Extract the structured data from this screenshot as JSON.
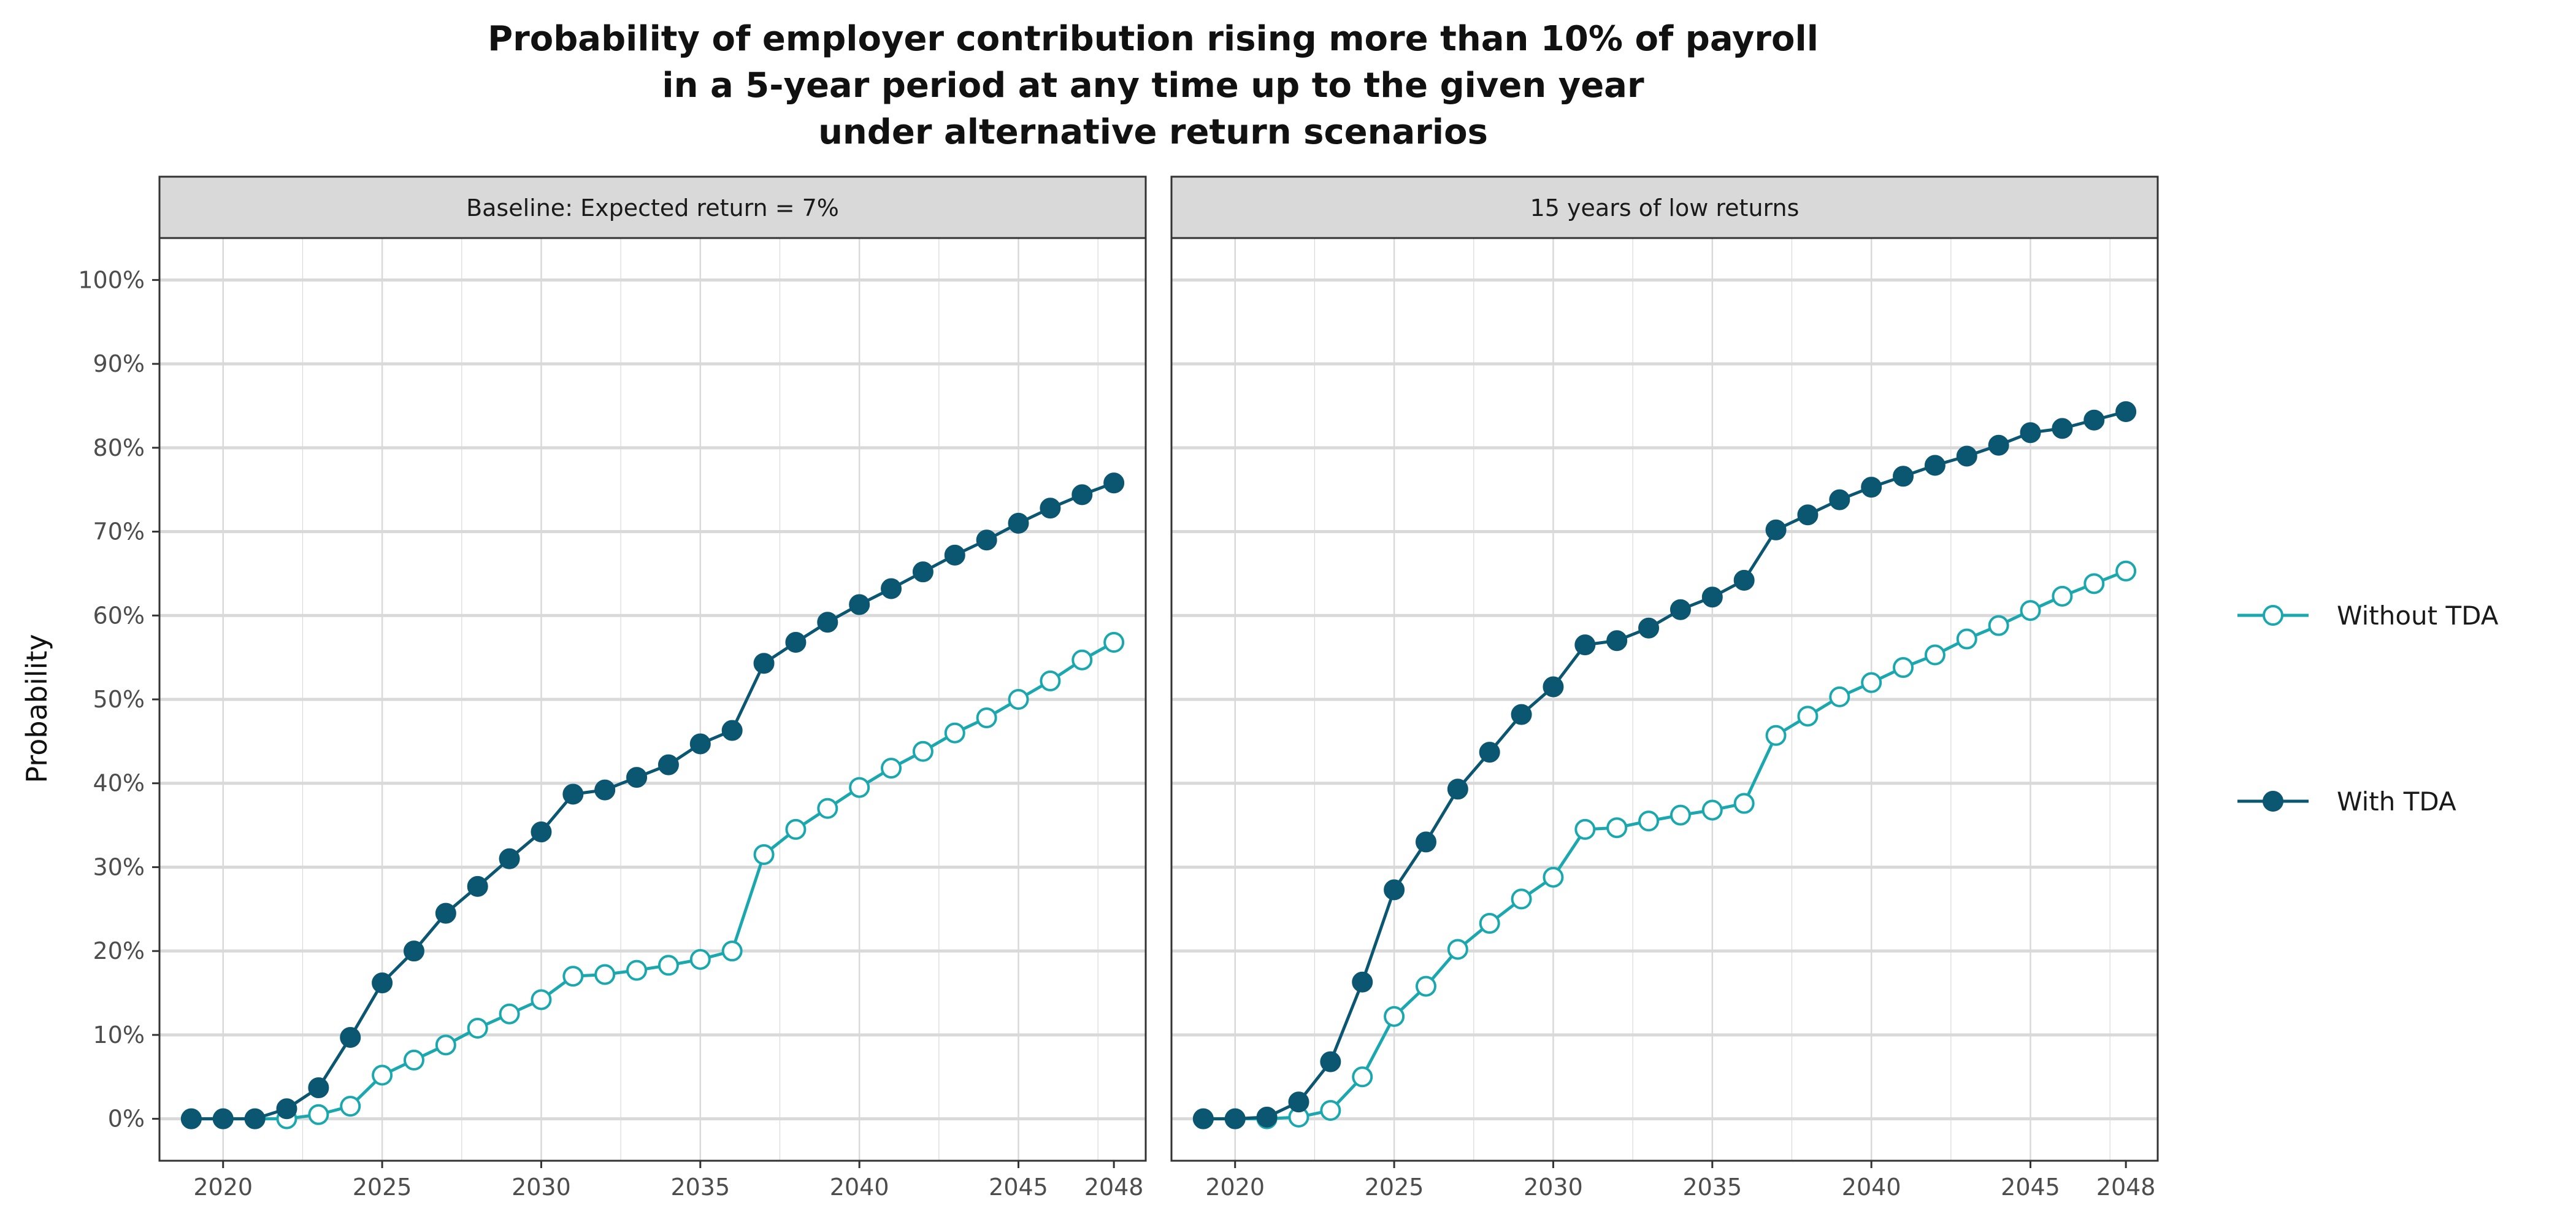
{
  "chart_data": {
    "type": "line",
    "title_lines": [
      "Probability of employer contribution rising more than 10% of payroll",
      "in a 5-year period at any time up to the given year",
      "under alternative return scenarios"
    ],
    "ylabel": "Probability",
    "xlabel": "",
    "xlim": [
      2018,
      2049
    ],
    "ylim": [
      -0.05,
      1.05
    ],
    "x_ticks": [
      2020,
      2025,
      2030,
      2035,
      2040,
      2045,
      2048
    ],
    "x_tick_labels": [
      "2020",
      "2025",
      "2030",
      "2035",
      "2040",
      "2045",
      "2048"
    ],
    "y_ticks": [
      0,
      0.1,
      0.2,
      0.3,
      0.4,
      0.5,
      0.6,
      0.7,
      0.8,
      0.9,
      1.0
    ],
    "y_tick_labels": [
      "0%",
      "10%",
      "20%",
      "30%",
      "40%",
      "50%",
      "60%",
      "70%",
      "80%",
      "90%",
      "100%"
    ],
    "grid": true,
    "legend_position": "right",
    "colors": {
      "without_tda": "#1aa8ae",
      "with_tda": "#0b5670",
      "strip_fill": "#d9d9d9",
      "grid": "#d9d9d9",
      "border": "#333333"
    },
    "legend": [
      {
        "key": "without_tda",
        "label": "Without TDA",
        "marker": "open-circle"
      },
      {
        "key": "with_tda",
        "label": "With TDA",
        "marker": "filled-circle"
      }
    ],
    "x": [
      2019,
      2020,
      2021,
      2022,
      2023,
      2024,
      2025,
      2026,
      2027,
      2028,
      2029,
      2030,
      2031,
      2032,
      2033,
      2034,
      2035,
      2036,
      2037,
      2038,
      2039,
      2040,
      2041,
      2042,
      2043,
      2044,
      2045,
      2046,
      2047,
      2048
    ],
    "panels": [
      {
        "strip": "Baseline: Expected return = 7%",
        "series": [
          {
            "key": "without_tda",
            "name": "Without TDA",
            "values": [
              0,
              0,
              0,
              0,
              0.005,
              0.015,
              0.052,
              0.07,
              0.088,
              0.108,
              0.125,
              0.142,
              0.17,
              0.172,
              0.177,
              0.183,
              0.19,
              0.2,
              0.315,
              0.345,
              0.37,
              0.395,
              0.418,
              0.438,
              0.46,
              0.478,
              0.5,
              0.522,
              0.547,
              0.568
            ]
          },
          {
            "key": "with_tda",
            "name": "With TDA",
            "values": [
              0,
              0,
              0,
              0.012,
              0.037,
              0.097,
              0.162,
              0.2,
              0.245,
              0.277,
              0.31,
              0.342,
              0.387,
              0.392,
              0.407,
              0.422,
              0.447,
              0.463,
              0.543,
              0.568,
              0.592,
              0.613,
              0.632,
              0.652,
              0.672,
              0.69,
              0.71,
              0.728,
              0.744,
              0.758
            ]
          }
        ]
      },
      {
        "strip": "15 years of low returns",
        "series": [
          {
            "key": "without_tda",
            "name": "Without TDA",
            "values": [
              0,
              0,
              0,
              0.002,
              0.01,
              0.05,
              0.122,
              0.158,
              0.202,
              0.233,
              0.262,
              0.288,
              0.345,
              0.347,
              0.355,
              0.362,
              0.368,
              0.376,
              0.457,
              0.48,
              0.503,
              0.52,
              0.538,
              0.553,
              0.572,
              0.588,
              0.606,
              0.623,
              0.638,
              0.653
            ]
          },
          {
            "key": "with_tda",
            "name": "With TDA",
            "values": [
              0,
              0,
              0.002,
              0.02,
              0.068,
              0.163,
              0.273,
              0.33,
              0.393,
              0.437,
              0.482,
              0.515,
              0.565,
              0.57,
              0.585,
              0.607,
              0.622,
              0.642,
              0.702,
              0.72,
              0.738,
              0.753,
              0.766,
              0.779,
              0.79,
              0.803,
              0.818,
              0.823,
              0.833,
              0.843
            ]
          }
        ]
      }
    ]
  }
}
